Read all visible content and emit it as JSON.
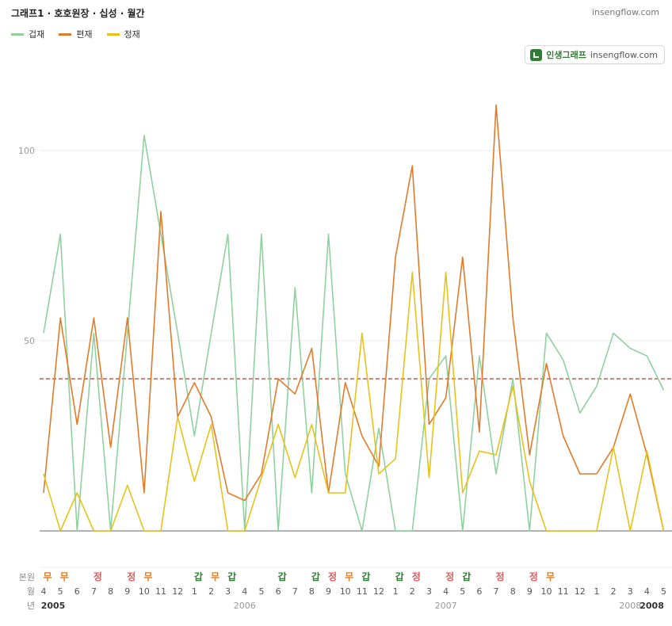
{
  "header": {
    "title": "그래프1 · 호호원장 · 십성 · 월간",
    "site": "insengflow.com"
  },
  "badge": {
    "brand": "인생그래프",
    "site": "insengflow.com",
    "icon": "chart-icon"
  },
  "colors": {
    "geopjae": "#8fd19e",
    "pyeonjae": "#e07b2a",
    "jeongjae": "#e6c21a",
    "refline": "#b03a2e",
    "earth": "#2e7d32",
    "fire": "#e05a5a",
    "wood": "#e07b2a"
  },
  "row_labels": {
    "bonwon": "본원",
    "month": "월",
    "year": "년"
  },
  "chart_data": {
    "type": "line",
    "title": "그래프1 · 호호원장 · 십성 · 월간",
    "xlabel": "",
    "ylabel": "",
    "ylim": [
      0,
      112
    ],
    "yticks": [
      0,
      50,
      100
    ],
    "reference_line": 40,
    "grid": true,
    "legend_position": "top-left",
    "x_start": "2005-04",
    "x_end": "2008-05",
    "month_ticks": [
      "4",
      "5",
      "6",
      "7",
      "8",
      "9",
      "10",
      "11",
      "12",
      "1",
      "2",
      "3",
      "4",
      "5",
      "6",
      "7",
      "8",
      "9",
      "10",
      "11",
      "12",
      "1",
      "2",
      "3",
      "4",
      "5",
      "6",
      "7",
      "8",
      "9",
      "10",
      "11",
      "12",
      "1",
      "2",
      "3",
      "4",
      "5"
    ],
    "year_labels": [
      {
        "label": "2005",
        "month": "2005-04",
        "bold": true
      },
      {
        "label": "2006",
        "month": "2006-04",
        "bold": false
      },
      {
        "label": "2007",
        "month": "2007-04",
        "bold": false
      },
      {
        "label": "2008",
        "month": "2008-03",
        "bold": false
      },
      {
        "label": "2008",
        "month": "2008-05",
        "bold": true
      }
    ],
    "bonwon": [
      {
        "label": "무",
        "month": "2005-04",
        "type": "wood"
      },
      {
        "label": "무",
        "month": "2005-05",
        "type": "wood"
      },
      {
        "label": "정",
        "month": "2005-07",
        "type": "fire"
      },
      {
        "label": "정",
        "month": "2005-09",
        "type": "fire"
      },
      {
        "label": "무",
        "month": "2005-10",
        "type": "wood"
      },
      {
        "label": "갑",
        "month": "2006-01",
        "type": "earth"
      },
      {
        "label": "무",
        "month": "2006-02",
        "type": "wood"
      },
      {
        "label": "갑",
        "month": "2006-03",
        "type": "earth"
      },
      {
        "label": "갑",
        "month": "2006-06",
        "type": "earth"
      },
      {
        "label": "갑",
        "month": "2006-08",
        "type": "earth"
      },
      {
        "label": "정",
        "month": "2006-09",
        "type": "fire"
      },
      {
        "label": "무",
        "month": "2006-10",
        "type": "wood"
      },
      {
        "label": "갑",
        "month": "2006-11",
        "type": "earth"
      },
      {
        "label": "갑",
        "month": "2007-01",
        "type": "earth"
      },
      {
        "label": "정",
        "month": "2007-02",
        "type": "fire"
      },
      {
        "label": "정",
        "month": "2007-04",
        "type": "fire"
      },
      {
        "label": "갑",
        "month": "2007-05",
        "type": "earth"
      },
      {
        "label": "정",
        "month": "2007-07",
        "type": "fire"
      },
      {
        "label": "정",
        "month": "2007-09",
        "type": "fire"
      },
      {
        "label": "무",
        "month": "2007-10",
        "type": "wood"
      }
    ],
    "series": [
      {
        "name": "겁재",
        "color": "#8fd19e",
        "x": [
          "2005-04",
          "2005-05",
          "2005-06",
          "2005-07",
          "2005-08",
          "2005-09",
          "2005-10",
          "2005-11",
          "2005-12",
          "2006-01",
          "2006-02",
          "2006-03",
          "2006-04",
          "2006-05",
          "2006-06",
          "2006-07",
          "2006-08",
          "2006-09",
          "2006-10",
          "2006-11",
          "2006-12",
          "2007-01",
          "2007-02",
          "2007-03",
          "2007-04",
          "2007-05",
          "2007-06",
          "2007-07",
          "2007-08",
          "2007-09",
          "2007-10",
          "2007-11",
          "2007-12",
          "2008-01",
          "2008-02",
          "2008-03",
          "2008-04",
          "2008-05"
        ],
        "values": [
          52,
          78,
          0,
          52,
          0,
          52,
          104,
          78,
          52,
          25,
          52,
          78,
          0,
          78,
          0,
          64,
          10,
          78,
          15,
          0,
          27,
          0,
          0,
          40,
          46,
          0,
          46,
          15,
          40,
          0,
          52,
          45,
          31,
          38,
          52,
          48,
          46,
          37
        ]
      },
      {
        "name": "편재",
        "color": "#e07b2a",
        "x": [
          "2005-04",
          "2005-05",
          "2005-06",
          "2005-07",
          "2005-08",
          "2005-09",
          "2005-10",
          "2005-11",
          "2005-12",
          "2006-01",
          "2006-02",
          "2006-03",
          "2006-04",
          "2006-05",
          "2006-06",
          "2006-07",
          "2006-08",
          "2006-09",
          "2006-10",
          "2006-11",
          "2006-12",
          "2007-01",
          "2007-02",
          "2007-03",
          "2007-04",
          "2007-05",
          "2007-06",
          "2007-07",
          "2007-08",
          "2007-09",
          "2007-10",
          "2007-11",
          "2007-12",
          "2008-01",
          "2008-02",
          "2008-03",
          "2008-04",
          "2008-05"
        ],
        "values": [
          10,
          56,
          28,
          56,
          22,
          56,
          10,
          84,
          30,
          39,
          30,
          10,
          8,
          15,
          40,
          36,
          48,
          10,
          39,
          25,
          17,
          72,
          96,
          28,
          35,
          72,
          26,
          112,
          56,
          20,
          44,
          25,
          15,
          15,
          22,
          36,
          20,
          0
        ]
      },
      {
        "name": "정재",
        "color": "#e6c21a",
        "x": [
          "2005-04",
          "2005-05",
          "2005-06",
          "2005-07",
          "2005-08",
          "2005-09",
          "2005-10",
          "2005-11",
          "2005-12",
          "2006-01",
          "2006-02",
          "2006-03",
          "2006-04",
          "2006-05",
          "2006-06",
          "2006-07",
          "2006-08",
          "2006-09",
          "2006-10",
          "2006-11",
          "2006-12",
          "2007-01",
          "2007-02",
          "2007-03",
          "2007-04",
          "2007-05",
          "2007-06",
          "2007-07",
          "2007-08",
          "2007-09",
          "2007-10",
          "2007-11",
          "2007-12",
          "2008-01",
          "2008-02",
          "2008-03",
          "2008-04",
          "2008-05"
        ],
        "values": [
          15,
          0,
          10,
          0,
          0,
          12,
          0,
          0,
          30,
          13,
          28,
          0,
          0,
          14,
          28,
          14,
          28,
          10,
          10,
          52,
          15,
          19,
          68,
          14,
          68,
          10,
          21,
          20,
          38,
          13,
          0,
          0,
          0,
          0,
          22,
          0,
          21,
          0
        ]
      }
    ]
  }
}
